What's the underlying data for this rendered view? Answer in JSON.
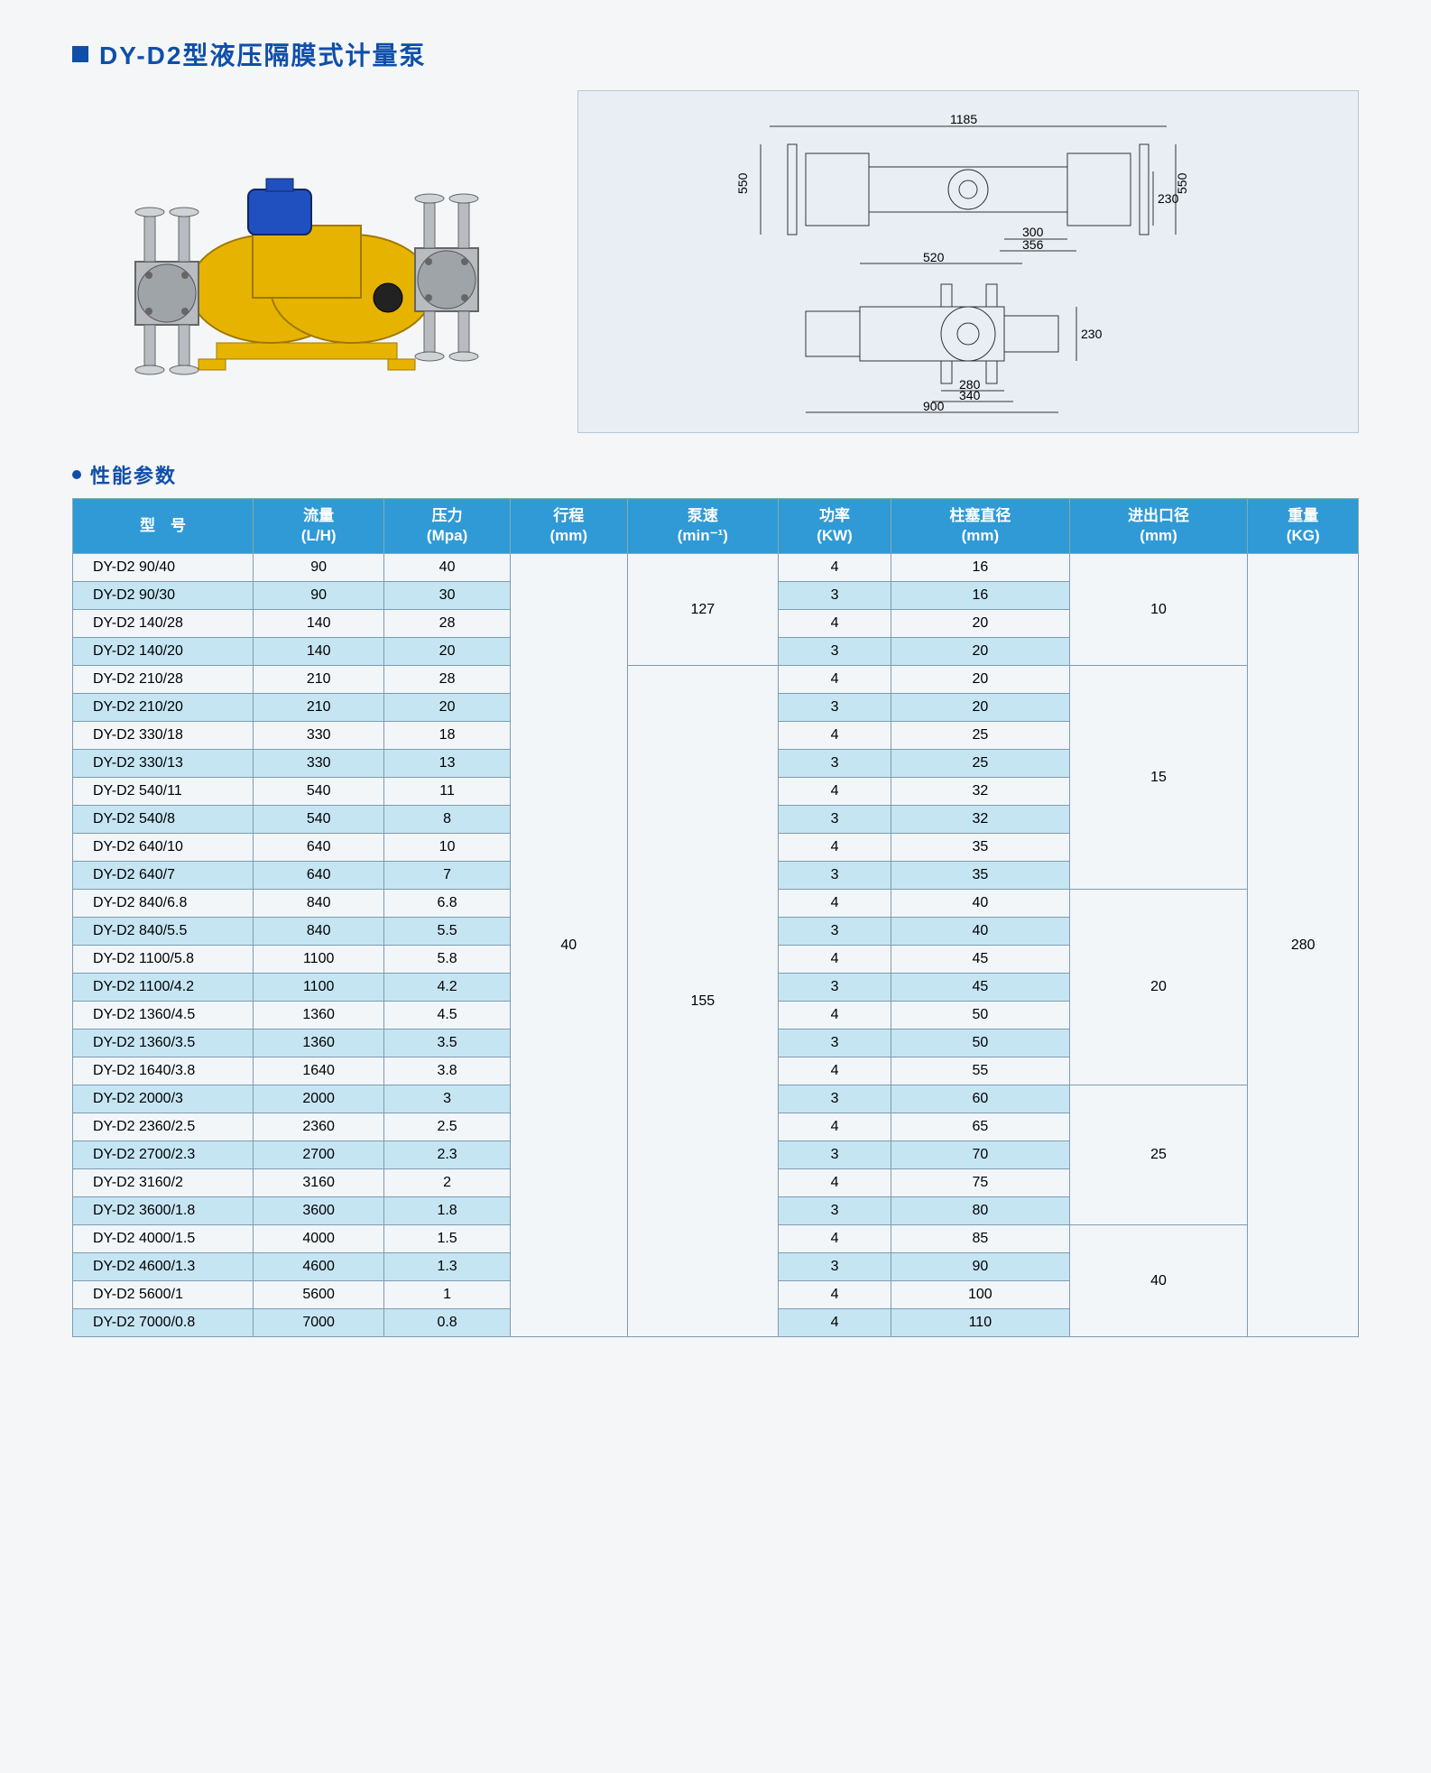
{
  "title": "DY-D2型液压隔膜式计量泵",
  "section_params": "性能参数",
  "table": {
    "columns": [
      {
        "label": "型　号"
      },
      {
        "label": "流量",
        "unit": "(L/H)"
      },
      {
        "label": "压力",
        "unit": "(Mpa)"
      },
      {
        "label": "行程",
        "unit": "(mm)"
      },
      {
        "label": "泵速",
        "unit": "(min⁻¹)"
      },
      {
        "label": "功率",
        "unit": "(KW)"
      },
      {
        "label": "柱塞直径",
        "unit": "(mm)"
      },
      {
        "label": "进出口径",
        "unit": "(mm)"
      },
      {
        "label": "重量",
        "unit": "(KG)"
      }
    ],
    "stroke_value": "40",
    "weight_value": "280",
    "groups": [
      {
        "speed": "127",
        "port": "10",
        "rows": [
          {
            "model": "DY-D2  90/40",
            "flow": "90",
            "pressure": "40",
            "power": "4",
            "dia": "16"
          },
          {
            "model": "DY-D2  90/30",
            "flow": "90",
            "pressure": "30",
            "power": "3",
            "dia": "16"
          },
          {
            "model": "DY-D2  140/28",
            "flow": "140",
            "pressure": "28",
            "power": "4",
            "dia": "20"
          },
          {
            "model": "DY-D2  140/20",
            "flow": "140",
            "pressure": "20",
            "power": "3",
            "dia": "20"
          }
        ]
      },
      {
        "speed": "155",
        "port_groups": [
          {
            "port": "15",
            "count": 8
          },
          {
            "port": "20",
            "count": 7
          },
          {
            "port": "25",
            "count": 5
          },
          {
            "port": "40",
            "count": 4
          }
        ],
        "rows": [
          {
            "model": "DY-D2  210/28",
            "flow": "210",
            "pressure": "28",
            "power": "4",
            "dia": "20"
          },
          {
            "model": "DY-D2  210/20",
            "flow": "210",
            "pressure": "20",
            "power": "3",
            "dia": "20"
          },
          {
            "model": "DY-D2  330/18",
            "flow": "330",
            "pressure": "18",
            "power": "4",
            "dia": "25"
          },
          {
            "model": "DY-D2  330/13",
            "flow": "330",
            "pressure": "13",
            "power": "3",
            "dia": "25"
          },
          {
            "model": "DY-D2  540/11",
            "flow": "540",
            "pressure": "11",
            "power": "4",
            "dia": "32"
          },
          {
            "model": "DY-D2  540/8",
            "flow": "540",
            "pressure": "8",
            "power": "3",
            "dia": "32"
          },
          {
            "model": "DY-D2  640/10",
            "flow": "640",
            "pressure": "10",
            "power": "4",
            "dia": "35"
          },
          {
            "model": "DY-D2  640/7",
            "flow": "640",
            "pressure": "7",
            "power": "3",
            "dia": "35"
          },
          {
            "model": "DY-D2  840/6.8",
            "flow": "840",
            "pressure": "6.8",
            "power": "4",
            "dia": "40"
          },
          {
            "model": "DY-D2  840/5.5",
            "flow": "840",
            "pressure": "5.5",
            "power": "3",
            "dia": "40"
          },
          {
            "model": "DY-D2  1100/5.8",
            "flow": "1100",
            "pressure": "5.8",
            "power": "4",
            "dia": "45"
          },
          {
            "model": "DY-D2  1100/4.2",
            "flow": "1100",
            "pressure": "4.2",
            "power": "3",
            "dia": "45"
          },
          {
            "model": "DY-D2  1360/4.5",
            "flow": "1360",
            "pressure": "4.5",
            "power": "4",
            "dia": "50"
          },
          {
            "model": "DY-D2  1360/3.5",
            "flow": "1360",
            "pressure": "3.5",
            "power": "3",
            "dia": "50"
          },
          {
            "model": "DY-D2  1640/3.8",
            "flow": "1640",
            "pressure": "3.8",
            "power": "4",
            "dia": "55"
          },
          {
            "model": "DY-D2  2000/3",
            "flow": "2000",
            "pressure": "3",
            "power": "3",
            "dia": "60"
          },
          {
            "model": "DY-D2  2360/2.5",
            "flow": "2360",
            "pressure": "2.5",
            "power": "4",
            "dia": "65"
          },
          {
            "model": "DY-D2  2700/2.3",
            "flow": "2700",
            "pressure": "2.3",
            "power": "3",
            "dia": "70"
          },
          {
            "model": "DY-D2  3160/2",
            "flow": "3160",
            "pressure": "2",
            "power": "4",
            "dia": "75"
          },
          {
            "model": "DY-D2  3600/1.8",
            "flow": "3600",
            "pressure": "1.8",
            "power": "3",
            "dia": "80"
          },
          {
            "model": "DY-D2  4000/1.5",
            "flow": "4000",
            "pressure": "1.5",
            "power": "4",
            "dia": "85"
          },
          {
            "model": "DY-D2  4600/1.3",
            "flow": "4600",
            "pressure": "1.3",
            "power": "3",
            "dia": "90"
          },
          {
            "model": "DY-D2  5600/1",
            "flow": "5600",
            "pressure": "1",
            "power": "4",
            "dia": "100"
          },
          {
            "model": "DY-D2  7000/0.8",
            "flow": "7000",
            "pressure": "0.8",
            "power": "4",
            "dia": "110"
          }
        ]
      }
    ]
  },
  "drawing_dims": {
    "top": {
      "width": "1185",
      "height_left": "550",
      "height_right": "550",
      "inner_h": "230",
      "inner_w1": "300",
      "inner_w2": "356",
      "inner_w3": "520"
    },
    "bottom": {
      "width": "900",
      "inner1": "280",
      "inner2": "340",
      "height": "230"
    }
  },
  "colors": {
    "brand_blue": "#0f4fa8",
    "header_blue": "#2f9ad6",
    "row_alt": "#c6e5f3",
    "row_norm": "#f2f6f9",
    "pump_yellow": "#e6b400",
    "pump_yellow_dark": "#c89400",
    "motor_blue": "#2050c0",
    "steel": "#b8bcc0"
  }
}
